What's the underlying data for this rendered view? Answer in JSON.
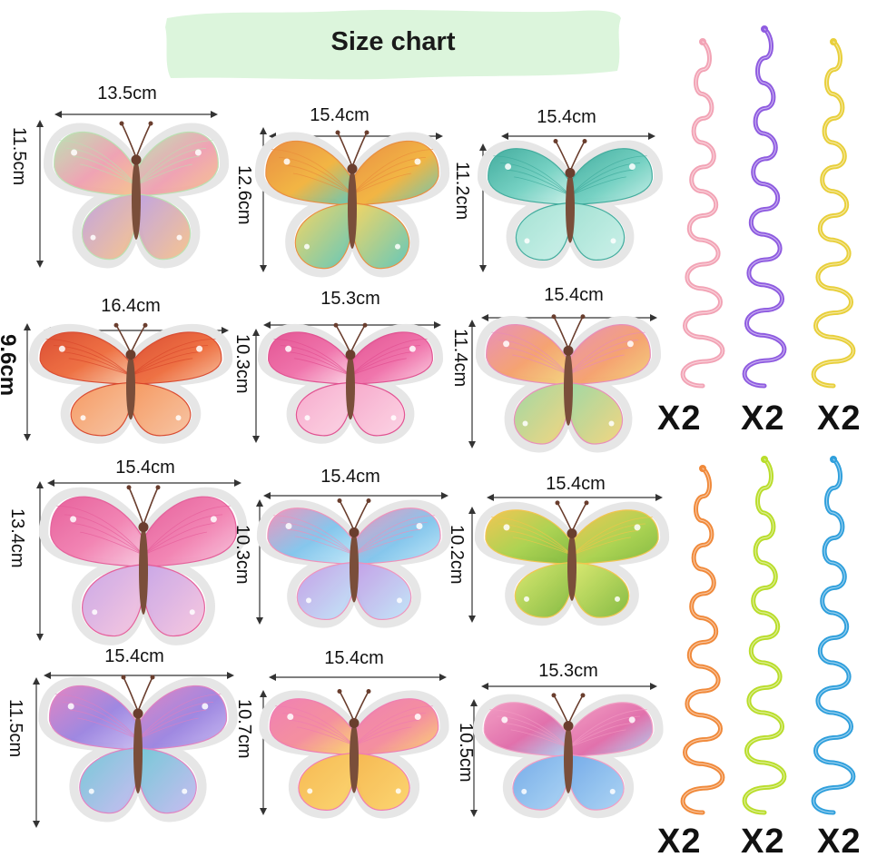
{
  "title": "Size chart",
  "butterflies": [
    {
      "width": "13.5cm",
      "height": "11.5cm",
      "colors": [
        "#ef9fb0",
        "#bfa0e0",
        "#b9e0b0",
        "#f6c28a"
      ]
    },
    {
      "width": "15.4cm",
      "height": "12.6cm",
      "colors": [
        "#f2b23a",
        "#f6d35b",
        "#e98a3a",
        "#5cc6b8"
      ]
    },
    {
      "width": "15.4cm",
      "height": "11.2cm",
      "colors": [
        "#6fcfc0",
        "#9fe0d2",
        "#3aa99a",
        "#c9f0e8"
      ]
    },
    {
      "width": "16.4cm",
      "height": "9.6cm",
      "colors": [
        "#ee6a3a",
        "#f5955a",
        "#d9452a",
        "#f7c2a0"
      ]
    },
    {
      "width": "15.3cm",
      "height": "10.3cm",
      "colors": [
        "#f06ea8",
        "#f7a6c9",
        "#e14c8e",
        "#fbd3e4"
      ]
    },
    {
      "width": "15.4cm",
      "height": "11.4cm",
      "colors": [
        "#f59f6a",
        "#9bd6a0",
        "#e88ab8",
        "#f3d37a"
      ]
    },
    {
      "width": "15.4cm",
      "height": "13.4cm",
      "colors": [
        "#f27fb0",
        "#c7a3e6",
        "#e55a98",
        "#f7c6de"
      ]
    },
    {
      "width": "15.4cm",
      "height": "10.3cm",
      "colors": [
        "#7fc4ec",
        "#c29be6",
        "#f08fb9",
        "#bfe6f8"
      ]
    },
    {
      "width": "15.4cm",
      "height": "10.2cm",
      "colors": [
        "#a8d14a",
        "#d9e86a",
        "#f2c44a",
        "#7fb83a"
      ]
    },
    {
      "width": "15.4cm",
      "height": "11.5cm",
      "colors": [
        "#9a82e0",
        "#6fc6d6",
        "#e07fc0",
        "#c7b9f0"
      ]
    },
    {
      "width": "15.4cm",
      "height": "10.7cm",
      "colors": [
        "#f48a9a",
        "#f6b54a",
        "#f07ab0",
        "#fbd46a"
      ]
    },
    {
      "width": "15.3cm",
      "height": "10.5cm",
      "colors": [
        "#e06aa8",
        "#6fa8e8",
        "#f29ac2",
        "#a9d3f4"
      ]
    }
  ],
  "spirals": [
    {
      "color": "#f2a3b5",
      "qty": "X2"
    },
    {
      "color": "#8e5be0",
      "qty": "X2"
    },
    {
      "color": "#e8cf3a",
      "qty": "X2"
    },
    {
      "color": "#f0893a",
      "qty": "X2"
    },
    {
      "color": "#b9dd2a",
      "qty": "X2"
    },
    {
      "color": "#2f9fdc",
      "qty": "X2"
    }
  ]
}
